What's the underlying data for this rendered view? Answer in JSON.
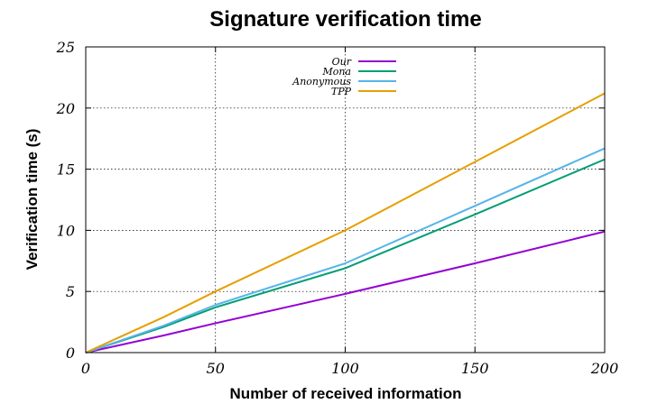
{
  "chart_data": {
    "type": "line",
    "title": "Signature verification time",
    "xlabel": "Number of received information",
    "ylabel": "Verification time (s)",
    "xlim": [
      0,
      200
    ],
    "ylim": [
      0,
      25
    ],
    "xticks": [
      "0",
      "50",
      "100",
      "150",
      "200"
    ],
    "yticks": [
      "0",
      "5",
      "10",
      "15",
      "20",
      "25"
    ],
    "grid": true,
    "legend_position": "top-center",
    "series": [
      {
        "name": "Our",
        "color": "#9400d3",
        "x": [
          0,
          30,
          50,
          100,
          150,
          200
        ],
        "y": [
          0,
          1.4,
          2.4,
          4.8,
          7.3,
          9.9
        ]
      },
      {
        "name": "Mona",
        "color": "#009e73",
        "x": [
          0,
          30,
          50,
          100,
          150,
          200
        ],
        "y": [
          0,
          2.1,
          3.7,
          6.9,
          11.3,
          15.8
        ]
      },
      {
        "name": "Anonymous",
        "color": "#56b4e9",
        "x": [
          0,
          30,
          50,
          100,
          150,
          200
        ],
        "y": [
          0,
          2.2,
          3.9,
          7.3,
          12.0,
          16.7
        ]
      },
      {
        "name": "TPP",
        "color": "#e69f00",
        "x": [
          0,
          30,
          50,
          100,
          150,
          200
        ],
        "y": [
          0,
          2.9,
          5.0,
          10.0,
          15.6,
          21.2
        ]
      }
    ]
  }
}
